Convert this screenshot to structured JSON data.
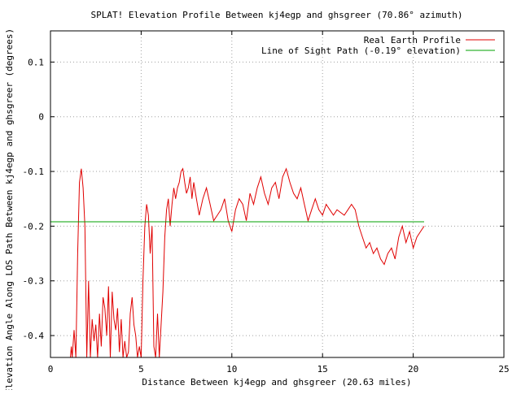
{
  "chart_data": {
    "type": "line",
    "title": "SPLAT! Elevation Profile Between kj4egp and ghsgreer (70.86° azimuth)",
    "xlabel": "Distance Between kj4egp and ghsgreer (20.63 miles)",
    "ylabel": "Elevation Angle Along LOS Path Between kj4egp and ghsgreer (degrees)",
    "xlim": [
      0,
      25
    ],
    "ylim": [
      -0.44,
      0.157
    ],
    "x_ticks": [
      0,
      5,
      10,
      15,
      20,
      25
    ],
    "x_tick_labels": [
      "0",
      "5",
      "10",
      "15",
      "20",
      "25"
    ],
    "y_ticks": [
      0.1,
      0,
      -0.1,
      -0.2,
      -0.3,
      -0.4
    ],
    "y_tick_labels": [
      "0.1",
      "0",
      "-0.1",
      "-0.2",
      "-0.3",
      "-0.4"
    ],
    "grid": true,
    "legend_position": "top-right",
    "series": [
      {
        "name": "Real Earth Profile",
        "color": "#e00000",
        "x": [
          1.1,
          1.15,
          1.2,
          1.3,
          1.4,
          1.5,
          1.6,
          1.7,
          1.8,
          1.9,
          2.0,
          2.1,
          2.2,
          2.3,
          2.4,
          2.5,
          2.6,
          2.7,
          2.8,
          2.9,
          3.0,
          3.1,
          3.2,
          3.3,
          3.4,
          3.5,
          3.6,
          3.7,
          3.8,
          3.9,
          4.0,
          4.1,
          4.2,
          4.3,
          4.4,
          4.5,
          4.6,
          4.7,
          4.8,
          4.9,
          5.0,
          5.1,
          5.2,
          5.3,
          5.4,
          5.5,
          5.6,
          5.7,
          5.8,
          5.9,
          6.0,
          6.1,
          6.2,
          6.3,
          6.4,
          6.5,
          6.6,
          6.7,
          6.8,
          6.9,
          7.0,
          7.1,
          7.2,
          7.3,
          7.4,
          7.5,
          7.6,
          7.7,
          7.8,
          7.9,
          8.0,
          8.2,
          8.4,
          8.6,
          8.8,
          9.0,
          9.2,
          9.4,
          9.6,
          9.8,
          10.0,
          10.2,
          10.4,
          10.6,
          10.8,
          11.0,
          11.2,
          11.4,
          11.6,
          11.8,
          12.0,
          12.2,
          12.4,
          12.6,
          12.8,
          13.0,
          13.2,
          13.4,
          13.6,
          13.8,
          14.0,
          14.2,
          14.4,
          14.6,
          14.8,
          15.0,
          15.2,
          15.4,
          15.6,
          15.8,
          16.0,
          16.2,
          16.4,
          16.6,
          16.8,
          17.0,
          17.2,
          17.4,
          17.6,
          17.8,
          18.0,
          18.2,
          18.4,
          18.6,
          18.8,
          19.0,
          19.2,
          19.4,
          19.6,
          19.8,
          20.0,
          20.2,
          20.4,
          20.6
        ],
        "values": [
          -0.44,
          -0.42,
          -0.44,
          -0.39,
          -0.44,
          -0.25,
          -0.12,
          -0.095,
          -0.13,
          -0.2,
          -0.44,
          -0.3,
          -0.44,
          -0.37,
          -0.41,
          -0.38,
          -0.44,
          -0.36,
          -0.42,
          -0.33,
          -0.35,
          -0.4,
          -0.31,
          -0.44,
          -0.32,
          -0.37,
          -0.39,
          -0.35,
          -0.43,
          -0.37,
          -0.44,
          -0.41,
          -0.44,
          -0.43,
          -0.36,
          -0.33,
          -0.38,
          -0.4,
          -0.44,
          -0.42,
          -0.44,
          -0.3,
          -0.2,
          -0.16,
          -0.18,
          -0.25,
          -0.2,
          -0.42,
          -0.44,
          -0.36,
          -0.44,
          -0.38,
          -0.32,
          -0.22,
          -0.17,
          -0.15,
          -0.2,
          -0.16,
          -0.13,
          -0.15,
          -0.13,
          -0.12,
          -0.1,
          -0.095,
          -0.12,
          -0.14,
          -0.13,
          -0.11,
          -0.15,
          -0.12,
          -0.14,
          -0.18,
          -0.15,
          -0.13,
          -0.16,
          -0.19,
          -0.18,
          -0.17,
          -0.15,
          -0.19,
          -0.21,
          -0.17,
          -0.15,
          -0.16,
          -0.19,
          -0.14,
          -0.16,
          -0.13,
          -0.11,
          -0.14,
          -0.16,
          -0.13,
          -0.12,
          -0.15,
          -0.11,
          -0.095,
          -0.12,
          -0.14,
          -0.15,
          -0.13,
          -0.16,
          -0.19,
          -0.17,
          -0.15,
          -0.17,
          -0.18,
          -0.16,
          -0.17,
          -0.18,
          -0.17,
          -0.175,
          -0.18,
          -0.17,
          -0.16,
          -0.17,
          -0.2,
          -0.22,
          -0.24,
          -0.23,
          -0.25,
          -0.24,
          -0.26,
          -0.27,
          -0.25,
          -0.24,
          -0.26,
          -0.22,
          -0.2,
          -0.23,
          -0.21,
          -0.24,
          -0.22,
          -0.21,
          -0.2
        ]
      },
      {
        "name": "Line of Sight Path (-0.19° elevation)",
        "color": "#00a000",
        "x": [
          0,
          20.6
        ],
        "values": [
          -0.192,
          -0.192
        ]
      }
    ]
  }
}
